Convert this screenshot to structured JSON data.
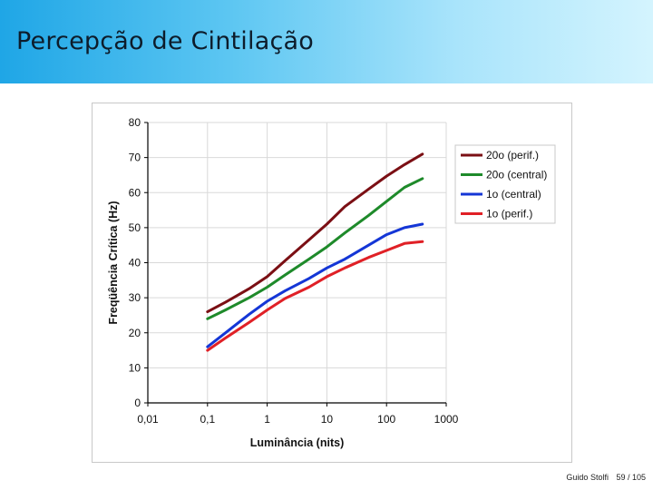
{
  "slide": {
    "title": "Percepção de Cintilação",
    "author": "Guido Stolfi",
    "page": "59 / 105"
  },
  "chart_data": {
    "type": "line",
    "title": "",
    "xlabel": "Luminância (nits)",
    "ylabel": "Freqüência Crítica (Hz)",
    "xscale": "log",
    "xlim": [
      0.01,
      1000
    ],
    "ylim": [
      0,
      80
    ],
    "xticks": [
      "0,01",
      "0,1",
      "1",
      "10",
      "100",
      "1000"
    ],
    "xtick_values": [
      0.01,
      0.1,
      1,
      10,
      100,
      1000
    ],
    "yticks": [
      0,
      10,
      20,
      30,
      40,
      50,
      60,
      70,
      80
    ],
    "grid": true,
    "legend_position": "right",
    "series": [
      {
        "name": "20o (perif.)",
        "color": "#7b0f14",
        "x": [
          0.1,
          0.2,
          0.5,
          1,
          2,
          5,
          10,
          20,
          50,
          100,
          200,
          400
        ],
        "y": [
          26,
          28.7,
          32.6,
          36,
          40.6,
          46.5,
          51,
          56,
          61,
          64.7,
          68,
          71
        ]
      },
      {
        "name": "20o (central)",
        "color": "#1e8a2a",
        "x": [
          0.1,
          0.2,
          0.5,
          1,
          2,
          5,
          10,
          20,
          50,
          100,
          200,
          400
        ],
        "y": [
          24,
          26.5,
          30,
          33,
          36.5,
          41,
          44.5,
          48.5,
          53.5,
          57.5,
          61.5,
          64
        ]
      },
      {
        "name": "1o (central)",
        "color": "#1436d6",
        "x": [
          0.1,
          0.2,
          0.5,
          1,
          2,
          5,
          10,
          20,
          50,
          100,
          200,
          400
        ],
        "y": [
          16,
          20,
          25.3,
          29,
          32,
          35.5,
          38.5,
          41,
          45,
          48,
          50,
          51
        ]
      },
      {
        "name": "1o (perif.)",
        "color": "#e02026",
        "x": [
          0.1,
          0.2,
          0.5,
          1,
          2,
          5,
          10,
          20,
          50,
          100,
          200,
          400
        ],
        "y": [
          15,
          18.5,
          23,
          26.5,
          29.8,
          33,
          36,
          38.5,
          41.5,
          43.5,
          45.5,
          46
        ]
      }
    ]
  }
}
